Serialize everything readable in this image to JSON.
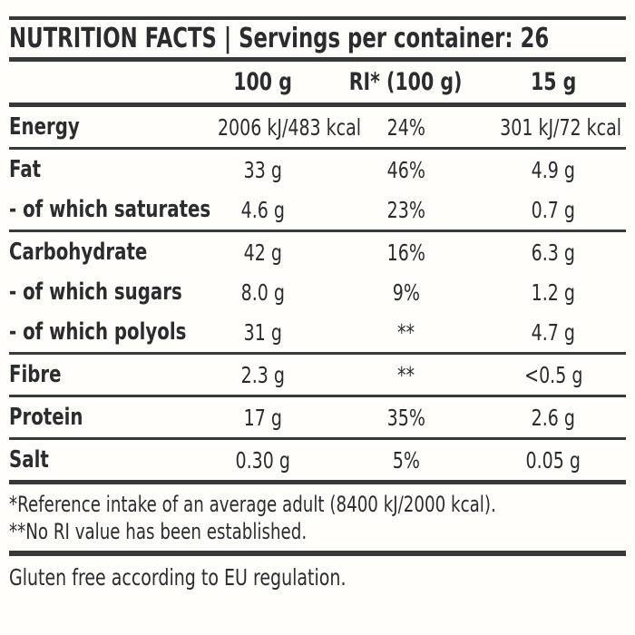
{
  "page": {
    "background_color": "#fffefa",
    "text_color": "#2b2c30",
    "rule_color": "#38393b"
  },
  "header": {
    "title": "NUTRITION FACTS | Servings per container: 26"
  },
  "table": {
    "columns": [
      "",
      "100 g",
      "RI* (100 g)",
      "15 g"
    ],
    "rows": [
      {
        "label": "Energy",
        "per_100g": "2006 kJ/483 kcal",
        "ri_100g": "24%",
        "per_15g": "301 kJ/72 kcal",
        "rule_after": "thin"
      },
      {
        "label": "Fat",
        "per_100g": "33 g",
        "ri_100g": "46%",
        "per_15g": "4.9 g",
        "rule_after": "none"
      },
      {
        "label": "- of which saturates",
        "per_100g": "4.6 g",
        "ri_100g": "23%",
        "per_15g": "0.7 g",
        "rule_after": "thin"
      },
      {
        "label": "Carbohydrate",
        "per_100g": "42 g",
        "ri_100g": "16%",
        "per_15g": "6.3 g",
        "rule_after": "none"
      },
      {
        "label": "- of which sugars",
        "per_100g": "8.0 g",
        "ri_100g": "9%",
        "per_15g": "1.2 g",
        "rule_after": "none"
      },
      {
        "label": "- of which polyols",
        "per_100g": "31 g",
        "ri_100g": "**",
        "per_15g": "4.7 g",
        "rule_after": "thin"
      },
      {
        "label": "Fibre",
        "per_100g": "2.3 g",
        "ri_100g": "**",
        "per_15g": "<0.5 g",
        "rule_after": "thin"
      },
      {
        "label": "Protein",
        "per_100g": "17 g",
        "ri_100g": "35%",
        "per_15g": "2.6 g",
        "rule_after": "thin"
      },
      {
        "label": "Salt",
        "per_100g": "0.30 g",
        "ri_100g": "5%",
        "per_15g": "0.05 g",
        "rule_after": "thick"
      }
    ]
  },
  "footnotes": [
    "*Reference intake of an average adult (8400 kJ/2000 kcal).",
    "**No RI value has been established."
  ],
  "bottom_note": "Gluten free according to EU regulation."
}
